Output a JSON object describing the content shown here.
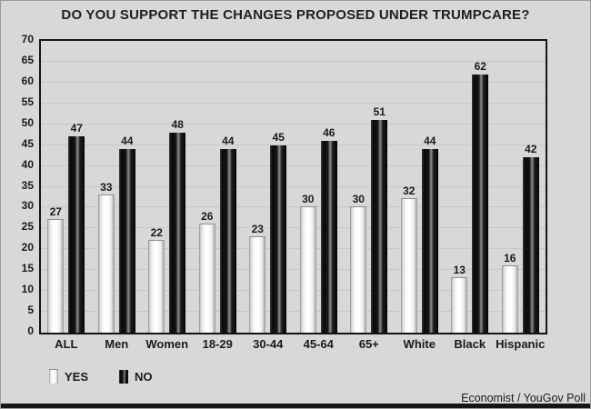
{
  "title": "DO YOU SUPPORT THE CHANGES PROPOSED UNDER TRUMPCARE?",
  "source": "Economist / YouGov Poll",
  "legend": {
    "yes_label": "YES",
    "no_label": "NO"
  },
  "colors": {
    "background": "#d8d8d8",
    "bar_yes": "#ffffff",
    "bar_no": "#111111",
    "gridline": "#c7c7c7",
    "text": "#1a1a1a",
    "plot_border": "#141414",
    "footer_bar": "#161616"
  },
  "chart_data": {
    "type": "bar",
    "title": "DO YOU SUPPORT THE CHANGES PROPOSED UNDER TRUMPCARE?",
    "categories": [
      "ALL",
      "Men",
      "Women",
      "18-29",
      "30-44",
      "45-64",
      "65+",
      "White",
      "Black",
      "Hispanic"
    ],
    "series": [
      {
        "name": "YES",
        "values": [
          27,
          33,
          22,
          26,
          23,
          30,
          30,
          32,
          13,
          16
        ]
      },
      {
        "name": "NO",
        "values": [
          47,
          44,
          48,
          44,
          45,
          46,
          51,
          44,
          62,
          42
        ]
      }
    ],
    "xlabel": "",
    "ylabel": "",
    "ylim": [
      0,
      70
    ],
    "ytick_step": 5,
    "grid": true,
    "value_labels": true,
    "legend_position": "bottom-left",
    "source": "Economist / YouGov Poll"
  }
}
